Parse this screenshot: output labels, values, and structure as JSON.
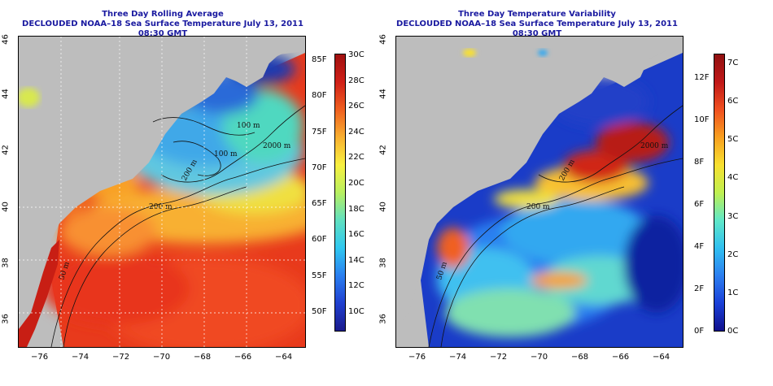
{
  "left": {
    "title_line1": "Three Day Rolling Average",
    "title_line2": "DECLOUDED NOAA–18 Sea Surface Temperature July 13, 2011 08:30 GMT",
    "colorbar_colors": [
      "#1a1a8c",
      "#2040d0",
      "#2a7ff0",
      "#30c8f0",
      "#60e0c0",
      "#b8f060",
      "#f8f040",
      "#f8b030",
      "#f06020",
      "#d02018",
      "#a01010"
    ],
    "colorbar_f": [
      "85F",
      "80F",
      "75F",
      "70F",
      "65F",
      "60F",
      "55F",
      "50F"
    ],
    "colorbar_c": [
      "30C",
      "28C",
      "26C",
      "24C",
      "22C",
      "20C",
      "18C",
      "16C",
      "14C",
      "12C",
      "10C"
    ],
    "isobath_labels": [
      "100 m",
      "100 m",
      "2000 m",
      "200 m",
      "200 m",
      "50 m"
    ]
  },
  "right": {
    "title_line1": "Three Day Temperature Variability",
    "title_line2": "DECLOUDED NOAA–18 Sea Surface Temperature July 13, 2011 08:30 GMT",
    "colorbar_colors": [
      "#10108c",
      "#1a40d8",
      "#2c7ff0",
      "#30c0f0",
      "#60e8c8",
      "#c0f050",
      "#f8e030",
      "#f8a020",
      "#f05020",
      "#c01818",
      "#901010"
    ],
    "colorbar_f": [
      "12F",
      "10F",
      "8F",
      "6F",
      "4F",
      "2F",
      "0F"
    ],
    "colorbar_c": [
      "7C",
      "6C",
      "5C",
      "4C",
      "3C",
      "2C",
      "1C",
      "0C"
    ],
    "isobath_labels": [
      "2000 m",
      "200 m",
      "200 m",
      "50 m"
    ]
  },
  "axes": {
    "lon_ticks": [
      "−76",
      "−74",
      "−72",
      "−70",
      "−68",
      "−66",
      "−64"
    ],
    "lat_ticks": [
      "46",
      "44",
      "42",
      "40",
      "38",
      "36"
    ]
  }
}
